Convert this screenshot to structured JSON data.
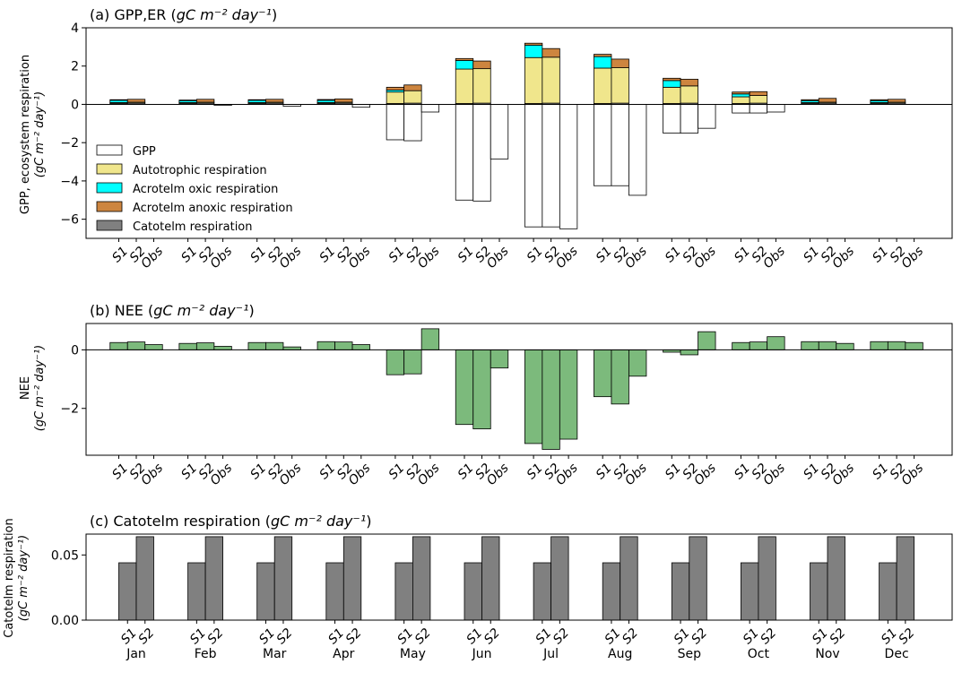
{
  "chart_data": [
    {
      "type": "bar",
      "title": "(a) GPP,ER",
      "title_unit": "gC m⁻² day⁻¹",
      "ylabel_line1": "GPP, ecosystem respiration",
      "ylabel_line2": "(gC m⁻² day⁻¹)",
      "ylim": [
        -7,
        4
      ],
      "yticks": [
        "4",
        "2",
        "0",
        "−2",
        "−4",
        "−6"
      ],
      "ytick_values": [
        4,
        2,
        0,
        -2,
        -4,
        -6
      ],
      "months": [
        "Jan",
        "Feb",
        "Mar",
        "Apr",
        "May",
        "Jun",
        "Jul",
        "Aug",
        "Sep",
        "Oct",
        "Nov",
        "Dec"
      ],
      "bar_labels": [
        "S1",
        "S2",
        "Obs"
      ],
      "legend_position": "center-left",
      "legend": [
        {
          "name": "GPP",
          "color": "#ffffff"
        },
        {
          "name": "Autotrophic respiration",
          "color": "#f0e68c"
        },
        {
          "name": "Acrotelm oxic respiration",
          "color": "#00ffff"
        },
        {
          "name": "Acrotelm anoxic respiration",
          "color": "#cd853f"
        },
        {
          "name": "Catotelm respiration",
          "color": "#808080"
        }
      ],
      "gpp": {
        "S1": [
          0,
          0,
          0,
          0,
          -1.85,
          -5.0,
          -6.4,
          -4.25,
          -1.5,
          -0.45,
          0,
          0
        ],
        "S2": [
          0,
          0,
          0,
          0,
          -1.9,
          -5.05,
          -6.4,
          -4.25,
          -1.5,
          -0.45,
          0,
          0
        ],
        "Obs": [
          0,
          -0.05,
          -0.1,
          -0.15,
          -0.4,
          -2.85,
          -6.5,
          -4.75,
          -1.25,
          -0.4,
          0,
          0
        ]
      },
      "autotrophic": {
        "S1": [
          0.05,
          0.05,
          0.05,
          0.05,
          0.6,
          1.8,
          2.4,
          1.85,
          0.85,
          0.35,
          0.05,
          0.05
        ],
        "S2": [
          0.05,
          0.05,
          0.05,
          0.05,
          0.65,
          1.8,
          2.4,
          1.85,
          0.9,
          0.4,
          0.05,
          0.05
        ]
      },
      "oxic": {
        "S1": [
          0.12,
          0.1,
          0.12,
          0.12,
          0.1,
          0.45,
          0.65,
          0.6,
          0.35,
          0.15,
          0.1,
          0.1
        ],
        "S2": [
          0,
          0,
          0,
          0,
          0,
          0,
          0,
          0,
          0,
          0,
          0,
          0
        ]
      },
      "anoxic": {
        "S1": [
          0.03,
          0.03,
          0.03,
          0.04,
          0.15,
          0.1,
          0.1,
          0.12,
          0.12,
          0.1,
          0.05,
          0.05
        ],
        "S2": [
          0.15,
          0.15,
          0.15,
          0.17,
          0.3,
          0.4,
          0.45,
          0.45,
          0.35,
          0.2,
          0.2,
          0.15
        ]
      },
      "catotelm": {
        "S1": [
          0.044,
          0.044,
          0.044,
          0.044,
          0.044,
          0.044,
          0.044,
          0.044,
          0.044,
          0.044,
          0.044,
          0.044
        ],
        "S2": [
          0.064,
          0.064,
          0.064,
          0.064,
          0.064,
          0.064,
          0.064,
          0.064,
          0.064,
          0.064,
          0.064,
          0.064
        ]
      }
    },
    {
      "type": "bar",
      "title": "(b) NEE",
      "title_unit": "gC m⁻² day⁻¹",
      "ylabel_line1": "NEE",
      "ylabel_line2": "(gC m⁻² day⁻¹)",
      "ylim": [
        -3.6,
        0.9
      ],
      "yticks": [
        "0",
        "−2"
      ],
      "ytick_values": [
        0,
        -2
      ],
      "months": [
        "Jan",
        "Feb",
        "Mar",
        "Apr",
        "May",
        "Jun",
        "Jul",
        "Aug",
        "Sep",
        "Oct",
        "Nov",
        "Dec"
      ],
      "bar_labels": [
        "S1",
        "S2",
        "Obs"
      ],
      "color": "#7cba7c",
      "series": [
        {
          "key": "S1",
          "values": [
            0.25,
            0.22,
            0.25,
            0.28,
            -0.85,
            -2.55,
            -3.2,
            -1.6,
            -0.08,
            0.25,
            0.28,
            0.28
          ]
        },
        {
          "key": "S2",
          "values": [
            0.27,
            0.24,
            0.25,
            0.27,
            -0.82,
            -2.7,
            -3.4,
            -1.85,
            -0.17,
            0.27,
            0.28,
            0.28
          ]
        },
        {
          "key": "Obs",
          "values": [
            0.18,
            0.12,
            0.1,
            0.18,
            0.72,
            -0.62,
            -3.05,
            -0.9,
            0.62,
            0.45,
            0.22,
            0.25
          ]
        }
      ]
    },
    {
      "type": "bar",
      "title": "(c) Catotelm respiration",
      "title_unit": "gC m⁻² day⁻¹",
      "ylabel_line1": "Catotelm respiration",
      "ylabel_line2": "(gC m⁻² day⁻¹)",
      "ylim": [
        0,
        0.066
      ],
      "yticks": [
        "0.05",
        "0.00"
      ],
      "ytick_values": [
        0.05,
        0.0
      ],
      "months": [
        "Jan",
        "Feb",
        "Mar",
        "Apr",
        "May",
        "Jun",
        "Jul",
        "Aug",
        "Sep",
        "Oct",
        "Nov",
        "Dec"
      ],
      "bar_labels": [
        "S1",
        "S2"
      ],
      "color": "#808080",
      "series": [
        {
          "key": "S1",
          "values": [
            0.044,
            0.044,
            0.044,
            0.044,
            0.044,
            0.044,
            0.044,
            0.044,
            0.044,
            0.044,
            0.044,
            0.044
          ]
        },
        {
          "key": "S2",
          "values": [
            0.064,
            0.064,
            0.064,
            0.064,
            0.064,
            0.064,
            0.064,
            0.064,
            0.064,
            0.064,
            0.064,
            0.064
          ]
        }
      ]
    }
  ]
}
